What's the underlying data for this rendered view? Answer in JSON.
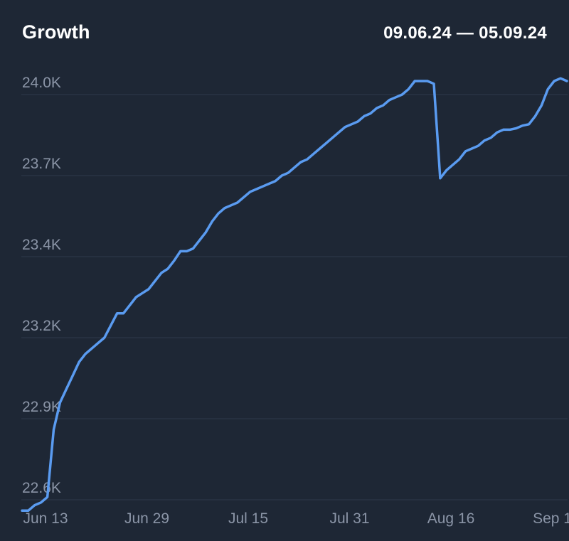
{
  "header": {
    "title": "Growth",
    "date_range": "09.06.24 — 05.09.24"
  },
  "colors": {
    "background": "#1e2735",
    "line": "#5a9bf0",
    "grid": "#2f3a4b",
    "tick_text": "#8b95a7",
    "title_text": "#ffffff"
  },
  "chart_data": {
    "type": "line",
    "title": "Growth",
    "subtitle": "09.06.24 — 05.09.24",
    "xlabel": "",
    "ylabel": "",
    "grid": true,
    "legend": "none",
    "y_ticks": [
      {
        "value": 22600,
        "label": "22.6K"
      },
      {
        "value": 22900,
        "label": "22.9K"
      },
      {
        "value": 23200,
        "label": "23.2K"
      },
      {
        "value": 23400,
        "label": "23.4K"
      },
      {
        "value": 23700,
        "label": "23.7K"
      },
      {
        "value": 24000,
        "label": "24.0K"
      }
    ],
    "x_ticks": [
      {
        "label": "Jun 13",
        "index": 0
      },
      {
        "label": "Jun 29",
        "index": 16
      },
      {
        "label": "Jul 15",
        "index": 32
      },
      {
        "label": "Jul 31",
        "index": 48
      },
      {
        "label": "Aug 16",
        "index": 64
      },
      {
        "label": "Sep 1",
        "index": 80
      }
    ],
    "series": [
      {
        "values": [
          22560,
          22560,
          22580,
          22590,
          22610,
          22860,
          22960,
          23010,
          23060,
          23110,
          23140,
          23160,
          23180,
          23200,
          23230,
          23260,
          23260,
          23280,
          23300,
          23310,
          23320,
          23340,
          23360,
          23370,
          23390,
          23420,
          23420,
          23430,
          23460,
          23490,
          23530,
          23560,
          23580,
          23590,
          23600,
          23620,
          23640,
          23650,
          23660,
          23670,
          23680,
          23700,
          23710,
          23730,
          23750,
          23760,
          23780,
          23800,
          23820,
          23840,
          23860,
          23880,
          23890,
          23900,
          23920,
          23930,
          23950,
          23960,
          23980,
          23990,
          24000,
          24020,
          24050,
          24050,
          24050,
          24040,
          23690,
          23720,
          23740,
          23760,
          23790,
          23800,
          23810,
          23830,
          23840,
          23860,
          23870,
          23870,
          23875,
          23885,
          23890,
          23920,
          23960,
          24020,
          24050,
          24060,
          24050
        ]
      }
    ]
  }
}
